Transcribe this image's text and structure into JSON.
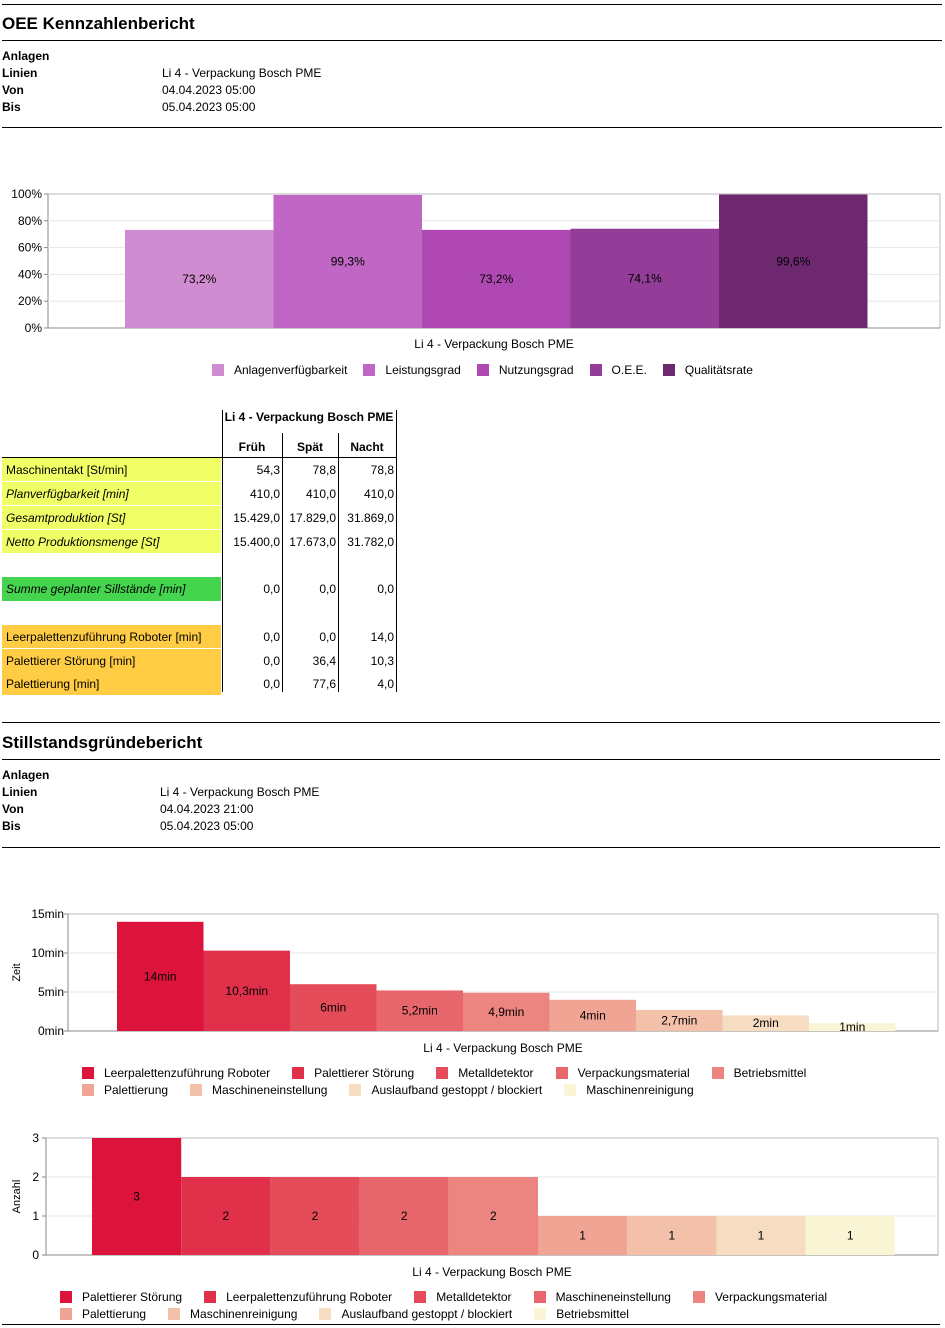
{
  "report1": {
    "title": "OEE Kennzahlenbericht",
    "meta": [
      {
        "label": "Anlagen",
        "value": ""
      },
      {
        "label": "Linien",
        "value": "Li 4 - Verpackung Bosch PME"
      },
      {
        "label": "Von",
        "value": "04.04.2023 05:00"
      },
      {
        "label": "Bis",
        "value": "05.04.2023 05:00"
      }
    ]
  },
  "report2": {
    "title": "Stillstandsgründebericht",
    "meta": [
      {
        "label": "Anlagen",
        "value": ""
      },
      {
        "label": "Linien",
        "value": "Li 4 - Verpackung Bosch PME"
      },
      {
        "label": "Von",
        "value": "04.04.2023 21:00"
      },
      {
        "label": "Bis",
        "value": "05.04.2023 05:00"
      }
    ]
  },
  "table": {
    "header_group": "Li 4 - Verpackung Bosch PME",
    "columns": [
      "Früh",
      "Spät",
      "Nacht"
    ],
    "rows": [
      {
        "label": "Maschinentakt [St/min]",
        "values": [
          "54,3",
          "78,8",
          "78,8"
        ],
        "color": "#f0ff66",
        "italic": false
      },
      {
        "label": "Planverfügbarkeit [min]",
        "values": [
          "410,0",
          "410,0",
          "410,0"
        ],
        "color": "#f0ff66",
        "italic": true
      },
      {
        "label": "Gesamtproduktion [St]",
        "values": [
          "15.429,0",
          "17.829,0",
          "31.869,0"
        ],
        "color": "#f0ff66",
        "italic": true
      },
      {
        "label": "Netto Produktionsmenge [St]",
        "values": [
          "15.400,0",
          "17.673,0",
          "31.782,0"
        ],
        "color": "#f0ff66",
        "italic": true
      },
      {
        "label": "Summe geplanter Sillstände [min]",
        "values": [
          "0,0",
          "0,0",
          "0,0"
        ],
        "color": "#44d44e",
        "italic": true
      },
      {
        "label": "Leerpalettenzuführung Roboter [min]",
        "values": [
          "0,0",
          "0,0",
          "14,0"
        ],
        "color": "#ffcc44",
        "italic": false
      },
      {
        "label": "Palettierer Störung [min]",
        "values": [
          "0,0",
          "36,4",
          "10,3"
        ],
        "color": "#ffcc44",
        "italic": false
      },
      {
        "label": "Palettierung [min]",
        "values": [
          "0,0",
          "77,6",
          "4,0"
        ],
        "color": "#ffcc44",
        "italic": false
      }
    ]
  },
  "chart_data": [
    {
      "type": "bar",
      "title": "",
      "categories": [
        "Li 4 - Verpackung Bosch PME"
      ],
      "xlabel": "Li 4 - Verpackung Bosch PME",
      "ylabel": "",
      "ylim": [
        0,
        100
      ],
      "yticks": [
        "0%",
        "20%",
        "40%",
        "60%",
        "80%",
        "100%"
      ],
      "series": [
        {
          "name": "Anlagenverfügbarkeit",
          "value": 73.2,
          "label": "73,2%",
          "color": "#d08cd0"
        },
        {
          "name": "Leistungsgrad",
          "value": 99.3,
          "label": "99,3%",
          "color": "#c066c4"
        },
        {
          "name": "Nutzungsgrad",
          "value": 73.2,
          "label": "73,2%",
          "color": "#b048b4"
        },
        {
          "name": "O.E.E.",
          "value": 74.1,
          "label": "74,1%",
          "color": "#943d98"
        },
        {
          "name": "Qualitätsrate",
          "value": 99.6,
          "label": "99,6%",
          "color": "#6e2870"
        }
      ],
      "legend": "bottom"
    },
    {
      "type": "bar",
      "title": "",
      "categories": [
        "Li 4 - Verpackung Bosch PME"
      ],
      "xlabel": "Li 4 - Verpackung Bosch PME",
      "ylabel": "Zeit",
      "ylim": [
        0,
        15
      ],
      "yticks": [
        "0min",
        "5min",
        "10min",
        "15min"
      ],
      "series": [
        {
          "name": "Leerpalettenzuführung Roboter",
          "value": 14,
          "label": "14min",
          "color": "#dc143c"
        },
        {
          "name": "Palettierer Störung",
          "value": 10.3,
          "label": "10,3min",
          "color": "#e0304a"
        },
        {
          "name": "Metalldetektor",
          "value": 6,
          "label": "6min",
          "color": "#e44c5a"
        },
        {
          "name": "Verpackungsmaterial",
          "value": 5.2,
          "label": "5,2min",
          "color": "#e8676c"
        },
        {
          "name": "Betriebsmittel",
          "value": 4.9,
          "label": "4,9min",
          "color": "#ec8480"
        },
        {
          "name": "Palettierung",
          "value": 4,
          "label": "4min",
          "color": "#f0a494"
        },
        {
          "name": "Maschineneinstellung",
          "value": 2.7,
          "label": "2,7min",
          "color": "#f3c1aa"
        },
        {
          "name": "Auslaufband gestoppt / blockiert",
          "value": 2,
          "label": "2min",
          "color": "#f6dcc0"
        },
        {
          "name": "Maschinenreinigung",
          "value": 1,
          "label": "1min",
          "color": "#faf5d4"
        }
      ],
      "legend": "bottom"
    },
    {
      "type": "bar",
      "title": "",
      "categories": [
        "Li 4 - Verpackung Bosch PME"
      ],
      "xlabel": "Li 4 - Verpackung Bosch PME",
      "ylabel": "Anzahl",
      "ylim": [
        0,
        3
      ],
      "yticks": [
        "0",
        "1",
        "2",
        "3"
      ],
      "series": [
        {
          "name": "Palettierer Störung",
          "value": 3,
          "label": "3",
          "color": "#dc143c"
        },
        {
          "name": "Leerpalettenzuführung Roboter",
          "value": 2,
          "label": "2",
          "color": "#e0304a"
        },
        {
          "name": "Metalldetektor",
          "value": 2,
          "label": "2",
          "color": "#e44c5a"
        },
        {
          "name": "Maschineneinstellung",
          "value": 2,
          "label": "2",
          "color": "#e8676c"
        },
        {
          "name": "Verpackungsmaterial",
          "value": 2,
          "label": "2",
          "color": "#ec8480"
        },
        {
          "name": "Palettierung",
          "value": 1,
          "label": "1",
          "color": "#f0a494"
        },
        {
          "name": "Maschinenreinigung",
          "value": 1,
          "label": "1",
          "color": "#f3c1aa"
        },
        {
          "name": "Auslaufband gestoppt / blockiert",
          "value": 1,
          "label": "1",
          "color": "#f6dcc0"
        },
        {
          "name": "Betriebsmittel",
          "value": 1,
          "label": "1",
          "color": "#faf5d4"
        }
      ],
      "legend": "bottom"
    }
  ]
}
